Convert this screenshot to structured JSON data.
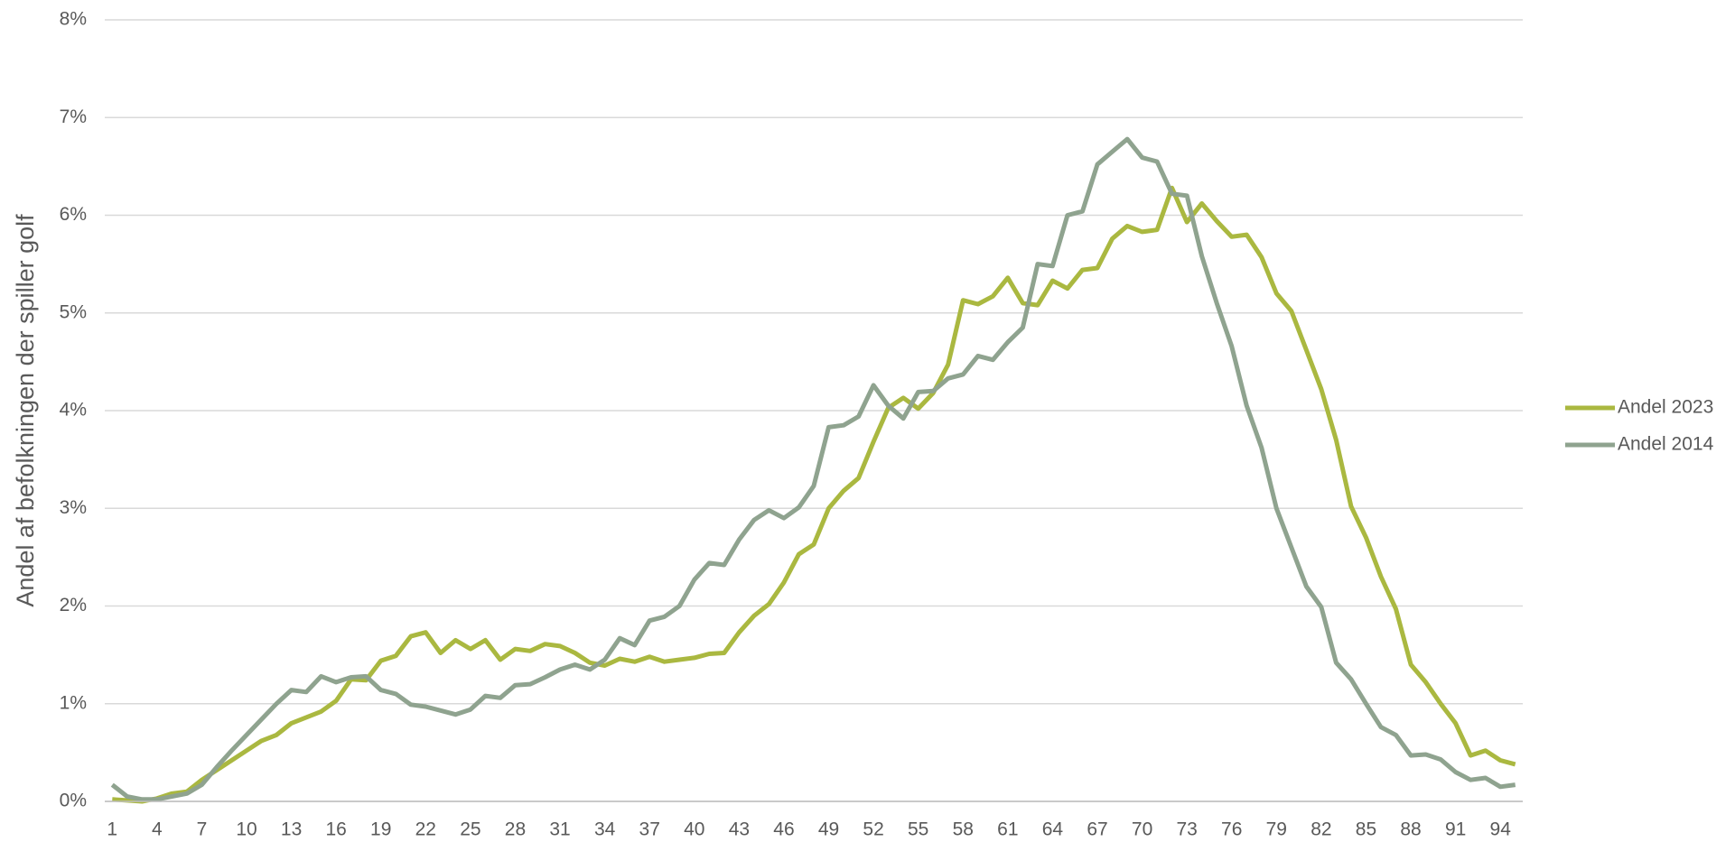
{
  "chart_data": {
    "type": "line",
    "y_label": "Andel af befolkningen der spiller golf",
    "categories": [
      "1",
      null,
      null,
      "4",
      null,
      null,
      "7",
      null,
      null,
      "10",
      null,
      null,
      "13",
      null,
      null,
      "16",
      null,
      null,
      "19",
      null,
      null,
      "22",
      null,
      null,
      "25",
      null,
      null,
      "28",
      null,
      null,
      "31",
      null,
      null,
      "34",
      null,
      null,
      "37",
      null,
      null,
      "40",
      null,
      null,
      "43",
      null,
      null,
      "46",
      null,
      null,
      "49",
      null,
      null,
      "52",
      null,
      null,
      "55",
      null,
      null,
      "58",
      null,
      null,
      "61",
      null,
      null,
      "64",
      null,
      null,
      "67",
      null,
      null,
      "70",
      null,
      null,
      "73",
      null,
      null,
      "76",
      null,
      null,
      "79",
      null,
      null,
      "82",
      null,
      null,
      "85",
      null,
      null,
      "88",
      null,
      null,
      "91",
      null,
      null,
      "94",
      null
    ],
    "series": [
      {
        "name": "Andel 2023",
        "color": "#aab840",
        "values": [
          0.02,
          0.01,
          0.0,
          0.03,
          0.08,
          0.1,
          0.22,
          0.32,
          0.42,
          0.52,
          0.62,
          0.68,
          0.8,
          0.86,
          0.92,
          1.03,
          1.25,
          1.24,
          1.44,
          1.49,
          1.69,
          1.73,
          1.52,
          1.65,
          1.56,
          1.65,
          1.45,
          1.56,
          1.54,
          1.61,
          1.59,
          1.52,
          1.42,
          1.39,
          1.46,
          1.43,
          1.48,
          1.43,
          1.45,
          1.47,
          1.51,
          1.52,
          1.73,
          1.9,
          2.02,
          2.24,
          2.53,
          2.63,
          3.0,
          3.18,
          3.31,
          3.68,
          4.03,
          4.13,
          4.02,
          4.18,
          4.47,
          5.13,
          5.09,
          5.17,
          5.36,
          5.1,
          5.08,
          5.33,
          5.25,
          5.44,
          5.46,
          5.76,
          5.89,
          5.83,
          5.85,
          6.28,
          5.93,
          6.12,
          5.94,
          5.78,
          5.8,
          5.57,
          5.2,
          5.02,
          4.62,
          4.22,
          3.7,
          3.02,
          2.7,
          2.3,
          1.97,
          1.4,
          1.22,
          1.0,
          0.8,
          0.47,
          0.52,
          0.42,
          0.38
        ]
      },
      {
        "name": "Andel 2014",
        "color": "#8fa38f",
        "values": [
          0.17,
          0.05,
          0.02,
          0.02,
          0.05,
          0.08,
          0.17,
          0.35,
          0.52,
          0.68,
          0.84,
          1.0,
          1.14,
          1.12,
          1.28,
          1.22,
          1.27,
          1.28,
          1.14,
          1.1,
          0.99,
          0.97,
          0.93,
          0.89,
          0.94,
          1.08,
          1.06,
          1.19,
          1.2,
          1.27,
          1.35,
          1.4,
          1.35,
          1.45,
          1.67,
          1.6,
          1.85,
          1.89,
          2.0,
          2.27,
          2.44,
          2.42,
          2.68,
          2.88,
          2.98,
          2.9,
          3.01,
          3.23,
          3.83,
          3.85,
          3.94,
          4.26,
          4.05,
          3.92,
          4.19,
          4.2,
          4.33,
          4.37,
          4.56,
          4.52,
          4.7,
          4.85,
          5.5,
          5.48,
          6.0,
          6.04,
          6.52,
          6.65,
          6.78,
          6.59,
          6.55,
          6.22,
          6.2,
          5.58,
          5.1,
          4.66,
          4.05,
          3.62,
          3.0,
          2.6,
          2.2,
          1.99,
          1.42,
          1.25,
          1.0,
          0.76,
          0.68,
          0.47,
          0.48,
          0.43,
          0.3,
          0.22,
          0.24,
          0.15,
          0.17
        ]
      }
    ],
    "ylim": [
      0,
      8
    ],
    "yticks": [
      {
        "value": 0,
        "label": "0%"
      },
      {
        "value": 1,
        "label": "1%"
      },
      {
        "value": 2,
        "label": "2%"
      },
      {
        "value": 3,
        "label": "3%"
      },
      {
        "value": 4,
        "label": "4%"
      },
      {
        "value": 5,
        "label": "5%"
      },
      {
        "value": 6,
        "label": "6%"
      },
      {
        "value": 7,
        "label": "7%"
      },
      {
        "value": 8,
        "label": "8%"
      }
    ],
    "grid": true,
    "legend": "right"
  }
}
